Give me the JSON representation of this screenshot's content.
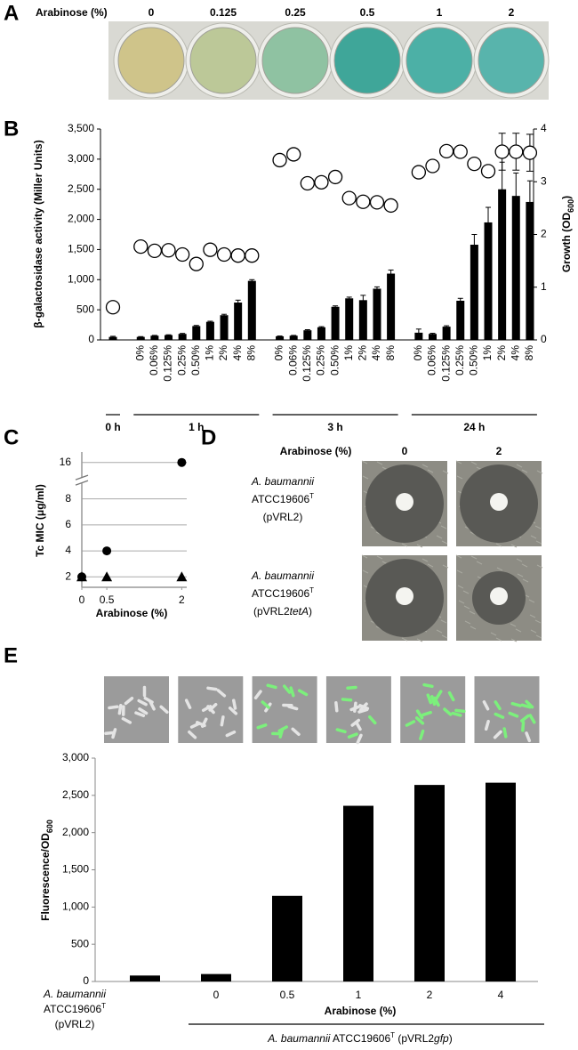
{
  "panel_a": {
    "letter": "A",
    "label": "Arabinose (%)",
    "concentrations": [
      "0",
      "0.125",
      "0.25",
      "0.5",
      "1",
      "2"
    ],
    "well_colors": [
      "#cfc48a",
      "#bcc898",
      "#8fc2a2",
      "#3fa699",
      "#4cb0a6",
      "#58b4ac"
    ]
  },
  "chart_data": [
    {
      "type": "bar-scatter",
      "letter": "B",
      "ylabel": "β-galactosidase activity (Miller Units)",
      "y2label": [
        "Growth (OD",
        "600",
        ")"
      ],
      "ylim": [
        0,
        3500
      ],
      "yticks": [
        0,
        500,
        {
          "value": 1000,
          "label": "1,000"
        },
        {
          "value": 1500,
          "label": "1,500"
        },
        {
          "value": 2000,
          "label": "2,000"
        },
        {
          "value": 2500,
          "label": "2,500"
        },
        {
          "value": 3000,
          "label": "3,000"
        },
        {
          "value": 3500,
          "label": "3,500"
        }
      ],
      "y2lim": [
        0,
        4
      ],
      "y2ticks": [
        0,
        1,
        2,
        3,
        4
      ],
      "bar_color": "#000000",
      "marker_color": "#ffffff",
      "groups": [
        {
          "label": "0 h",
          "categories": [
            null
          ],
          "values": [
            50
          ],
          "errors": [
            10
          ],
          "growth": [
            0.62
          ],
          "growth_errors": [
            null
          ]
        },
        {
          "label": "1 h",
          "categories": [
            "0%",
            "0.06%",
            "0.125%",
            "0.25%",
            "0.50%",
            "1%",
            "2%",
            "4%",
            "8%"
          ],
          "values": [
            50,
            70,
            80,
            100,
            230,
            300,
            410,
            620,
            980
          ],
          "errors": [
            5,
            5,
            5,
            8,
            10,
            10,
            15,
            40,
            20
          ],
          "growth": [
            1.77,
            1.69,
            1.7,
            1.62,
            1.44,
            1.71,
            1.62,
            1.6,
            1.6
          ],
          "growth_errors": [
            null,
            null,
            null,
            null,
            null,
            null,
            null,
            null,
            null
          ]
        },
        {
          "label": "3 h",
          "categories": [
            "0%",
            "0.06%",
            "0.125%",
            "0.25%",
            "0.50%",
            "1%",
            "2%",
            "4%",
            "8%"
          ],
          "values": [
            60,
            70,
            160,
            210,
            550,
            690,
            660,
            850,
            1100
          ],
          "errors": [
            5,
            5,
            10,
            10,
            15,
            20,
            80,
            30,
            60
          ],
          "growth": [
            3.41,
            3.52,
            2.97,
            2.99,
            3.09,
            2.69,
            2.62,
            2.61,
            2.55
          ],
          "growth_errors": [
            null,
            null,
            null,
            null,
            null,
            null,
            null,
            null,
            null
          ]
        },
        {
          "label": "24 h",
          "categories": [
            "0%",
            "0.06%",
            "0.125%",
            "0.25%",
            "0.50%",
            "1%",
            "2%",
            "4%",
            "8%"
          ],
          "values": [
            120,
            100,
            220,
            650,
            1580,
            1950,
            2500,
            2390,
            2290
          ],
          "errors": [
            60,
            10,
            15,
            40,
            170,
            250,
            450,
            380,
            350
          ],
          "growth": [
            3.18,
            3.3,
            3.58,
            3.57,
            3.34,
            3.2,
            3.57,
            3.57,
            3.55
          ],
          "growth_errors": [
            null,
            null,
            null,
            null,
            null,
            null,
            0.35,
            0.35,
            0.35
          ]
        }
      ]
    },
    {
      "type": "scatter",
      "letter": "C",
      "ylabel": "Tc MIC (μg/ml)",
      "xlabel": "Arabinose (%)",
      "xlim": [
        0,
        2.1
      ],
      "xticks": [
        0,
        0.5,
        2
      ],
      "ylim": [
        1,
        17
      ],
      "yticks": [
        2,
        4,
        6,
        8,
        16
      ],
      "y_break": true,
      "grid": true,
      "series": [
        {
          "marker": "triangle",
          "color": "#000000",
          "x": [
            0,
            0.5,
            2
          ],
          "values": [
            2,
            2,
            2
          ]
        },
        {
          "marker": "circle",
          "color": "#000000",
          "x": [
            0,
            0.5,
            2
          ],
          "values": [
            2,
            4,
            16
          ]
        }
      ]
    },
    {
      "type": "bar",
      "letter": "E",
      "ylabel": [
        "Fluorescence/OD",
        "600"
      ],
      "xlabel": "Arabinose (%)",
      "categories": [
        null,
        "0",
        "0.5",
        "1",
        "2",
        "4"
      ],
      "control_label": [
        "A. baumannii",
        "ATCC19606",
        "T",
        "(pVRL2)"
      ],
      "group_label": [
        "A. baumannii",
        " ATCC19606",
        "T",
        " (pVRL2",
        "gfp",
        ")"
      ],
      "values": [
        80,
        100,
        1150,
        2360,
        2640,
        2670
      ],
      "color": "#000000",
      "ylim": [
        0,
        3000
      ],
      "yticks": [
        0,
        500,
        {
          "value": 1000,
          "label": "1,000"
        },
        {
          "value": 1500,
          "label": "1,500"
        },
        {
          "value": 2000,
          "label": "2,000"
        },
        {
          "value": 2500,
          "label": "2,500"
        },
        {
          "value": 3000,
          "label": "3,000"
        }
      ]
    }
  ],
  "panel_d": {
    "letter": "D",
    "header": "Arabinose (%)",
    "columns": [
      "0",
      "2"
    ],
    "rows": [
      [
        "A. baumannii",
        "ATCC19606",
        "T",
        "(pVRL2)"
      ],
      [
        "A. baumannii",
        "ATCC19606",
        "T",
        "(pVRL2",
        "tetA",
        ")"
      ]
    ]
  }
}
